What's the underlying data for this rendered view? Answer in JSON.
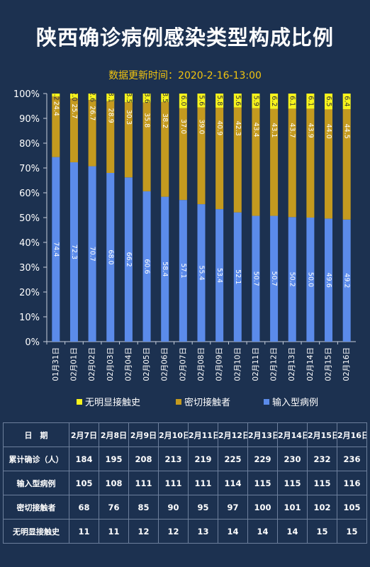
{
  "title": "陕西确诊病例感染类型构成比例",
  "subtitle": "数据更新时间：2020-2-16-13:00",
  "colors": {
    "input": "#5b8bea",
    "contact": "#c49a1f",
    "unknown": "#f7f31c",
    "background": "#1c3150"
  },
  "legend": [
    {
      "label": "无明显接触史",
      "color": "#f7f31c"
    },
    {
      "label": "密切接触者",
      "color": "#c49a1f"
    },
    {
      "label": "输入型病例",
      "color": "#5b8bea"
    }
  ],
  "chart_data": {
    "type": "bar",
    "stacked": true,
    "categories": [
      "01月31日",
      "02月01日",
      "02月02日",
      "02月03日",
      "02月04日",
      "02月05日",
      "02月06日",
      "02月07日",
      "02月08日",
      "02月09日",
      "02月10日",
      "02月11日",
      "02月12日",
      "02月13日",
      "02月14日",
      "02月15日",
      "02月16日"
    ],
    "series": [
      {
        "name": "输入型病例",
        "values": [
          74.4,
          72.3,
          70.7,
          68.0,
          66.2,
          60.6,
          58.4,
          57.1,
          55.4,
          53.4,
          52.1,
          50.7,
          50.7,
          50.2,
          50.0,
          49.6,
          49.2
        ]
      },
      {
        "name": "密切接触者",
        "values": [
          24.4,
          25.7,
          26.7,
          28.9,
          30.3,
          35.8,
          38.2,
          37.0,
          39.0,
          40.9,
          42.3,
          43.4,
          43.1,
          43.7,
          43.9,
          44.0,
          44.5
        ]
      },
      {
        "name": "无明显接触史",
        "values": [
          1.2,
          2.0,
          2.6,
          3.1,
          3.5,
          3.6,
          3.5,
          6.0,
          5.6,
          5.8,
          5.6,
          5.9,
          6.2,
          6.1,
          6.1,
          6.5,
          6.4
        ]
      }
    ],
    "yticks": [
      "0%",
      "10%",
      "20%",
      "30%",
      "40%",
      "50%",
      "60%",
      "70%",
      "80%",
      "90%",
      "100%"
    ],
    "ylim": [
      0,
      100
    ],
    "legend_position": "bottom"
  },
  "table": {
    "header": [
      "日　期",
      "2月7日",
      "2月8日",
      "2月9日",
      "2月10日",
      "2月11日",
      "2月12日",
      "2月13日",
      "2月14日",
      "2月15日",
      "2月16日"
    ],
    "rows": [
      [
        "累计确诊（人）",
        "184",
        "195",
        "208",
        "213",
        "219",
        "225",
        "229",
        "230",
        "232",
        "236"
      ],
      [
        "输入型病例",
        "105",
        "108",
        "111",
        "111",
        "111",
        "114",
        "115",
        "115",
        "115",
        "116"
      ],
      [
        "密切接触者",
        "68",
        "76",
        "85",
        "90",
        "95",
        "97",
        "100",
        "101",
        "102",
        "105"
      ],
      [
        "无明显接触史",
        "11",
        "11",
        "12",
        "12",
        "13",
        "14",
        "14",
        "14",
        "15",
        "15"
      ]
    ]
  }
}
